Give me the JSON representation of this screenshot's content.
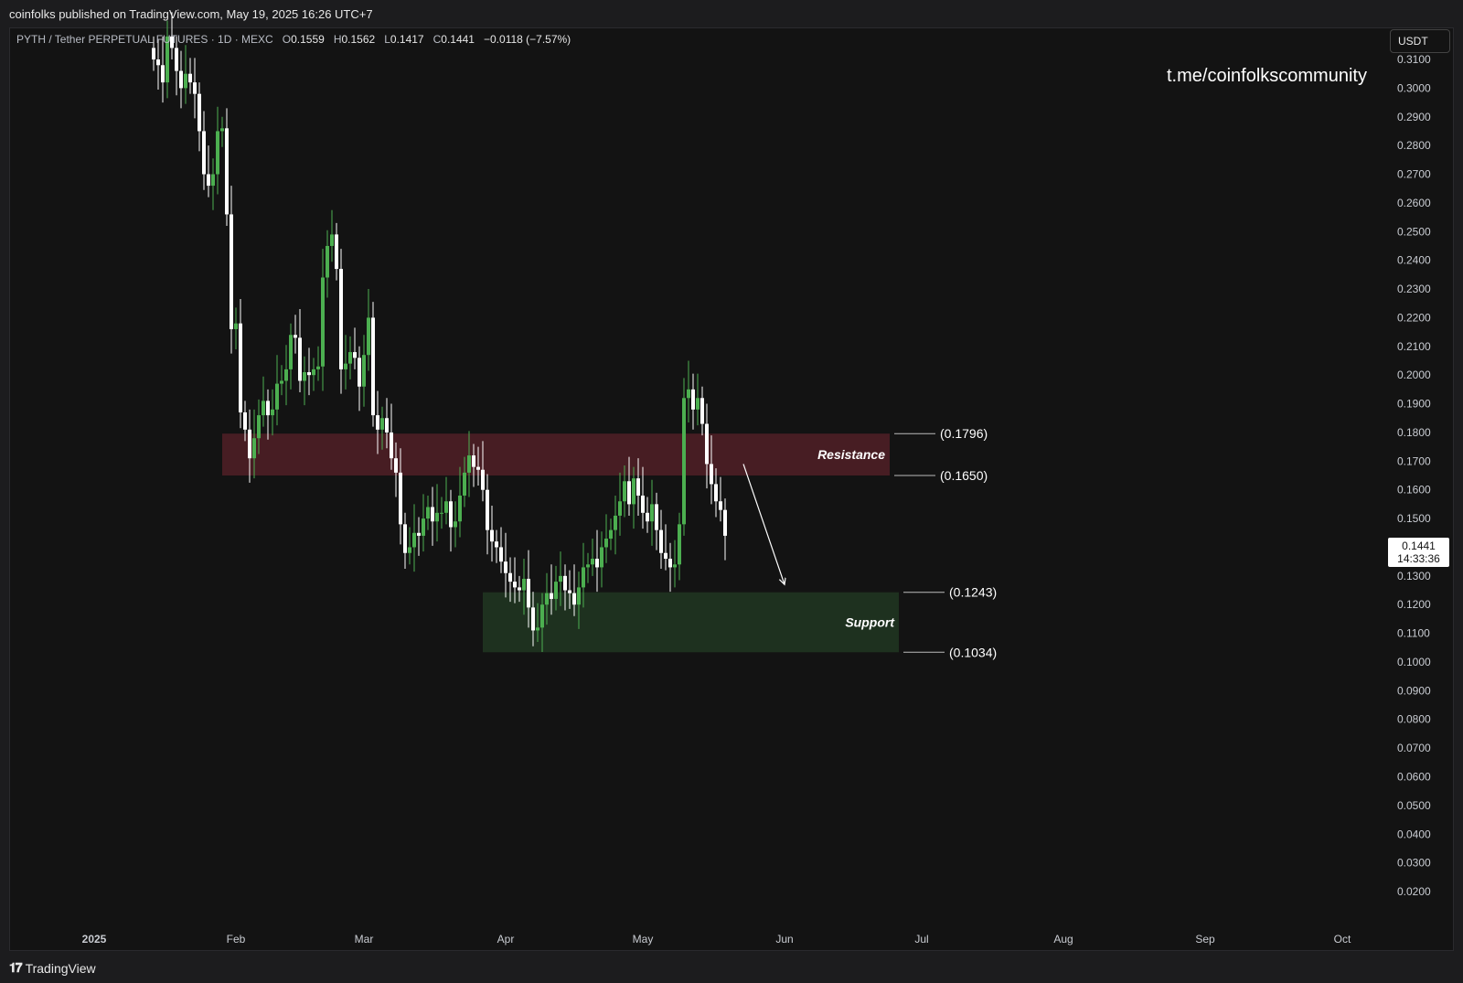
{
  "header": {
    "published": "coinfolks published on TradingView.com, May 19, 2025 16:26 UTC+7"
  },
  "legend": {
    "symbol": "PYTH / Tether PERPETUAL FUTURES · 1D · MEXC",
    "o_label": "O",
    "o": "0.1559",
    "h_label": "H",
    "h": "0.1562",
    "l_label": "L",
    "l": "0.1417",
    "c_label": "C",
    "c": "0.1441",
    "change": "−0.0118 (−7.57%)"
  },
  "watermark_text": "t.me/coinfolkscommunity",
  "currency_button": "USDT",
  "price_tag": {
    "price": "0.1441",
    "countdown": "14:33:36"
  },
  "footer": {
    "logo_mark": "𝟏𝟕",
    "brand": "TradingView"
  },
  "colors": {
    "background": "#131313",
    "up": "#4caf50",
    "down": "#ffffff",
    "resistance_zone": "#4a1e24",
    "support_zone": "#1f3320"
  },
  "chart_data": {
    "type": "candlestick",
    "symbol": "PYTH / Tether PERPETUAL FUTURES",
    "timeframe": "1D",
    "exchange": "MEXC",
    "y_axis_ticks": [
      "0.3100",
      "0.3000",
      "0.2900",
      "0.2800",
      "0.2700",
      "0.2600",
      "0.2500",
      "0.2400",
      "0.2300",
      "0.2200",
      "0.2100",
      "0.2000",
      "0.1900",
      "0.1800",
      "0.1700",
      "0.1600",
      "0.1500",
      "0.1400",
      "0.1300",
      "0.1200",
      "0.1100",
      "0.1000",
      "0.0900",
      "0.0800",
      "0.0700",
      "0.0600",
      "0.0500",
      "0.0400",
      "0.0300",
      "0.0200"
    ],
    "y_tick_values": [
      0.31,
      0.3,
      0.29,
      0.28,
      0.27,
      0.26,
      0.25,
      0.24,
      0.23,
      0.22,
      0.21,
      0.2,
      0.19,
      0.18,
      0.17,
      0.16,
      0.15,
      0.14,
      0.13,
      0.12,
      0.11,
      0.1,
      0.09,
      0.08,
      0.07,
      0.06,
      0.05,
      0.04,
      0.03,
      0.02
    ],
    "x_axis_ticks": [
      {
        "label": "2025",
        "date": "2025-01-01",
        "bold": true
      },
      {
        "label": "Feb",
        "date": "2025-02-01"
      },
      {
        "label": "Mar",
        "date": "2025-03-01"
      },
      {
        "label": "Apr",
        "date": "2025-04-01"
      },
      {
        "label": "May",
        "date": "2025-05-01"
      },
      {
        "label": "Jun",
        "date": "2025-06-01"
      },
      {
        "label": "Jul",
        "date": "2025-07-01"
      },
      {
        "label": "Aug",
        "date": "2025-08-01"
      },
      {
        "label": "Sep",
        "date": "2025-09-01"
      },
      {
        "label": "Oct",
        "date": "2025-10-01"
      }
    ],
    "candles_start": "2025-01-14",
    "closes": [
      0.31,
      0.308,
      0.302,
      0.318,
      0.314,
      0.306,
      0.3,
      0.305,
      0.302,
      0.298,
      0.285,
      0.27,
      0.266,
      0.27,
      0.285,
      0.286,
      0.256,
      0.216,
      0.218,
      0.187,
      0.181,
      0.171,
      0.178,
      0.186,
      0.191,
      0.186,
      0.188,
      0.197,
      0.198,
      0.202,
      0.214,
      0.213,
      0.198,
      0.201,
      0.2,
      0.202,
      0.203,
      0.234,
      0.245,
      0.249,
      0.237,
      0.202,
      0.204,
      0.208,
      0.206,
      0.196,
      0.207,
      0.22,
      0.186,
      0.181,
      0.185,
      0.18,
      0.171,
      0.166,
      0.148,
      0.138,
      0.14,
      0.145,
      0.144,
      0.15,
      0.154,
      0.149,
      0.152,
      0.152,
      0.156,
      0.147,
      0.149,
      0.158,
      0.166,
      0.172,
      0.168,
      0.167,
      0.16,
      0.146,
      0.142,
      0.14,
      0.135,
      0.131,
      0.128,
      0.126,
      0.125,
      0.129,
      0.119,
      0.111,
      0.112,
      0.12,
      0.124,
      0.122,
      0.128,
      0.13,
      0.125,
      0.124,
      0.12,
      0.126,
      0.133,
      0.134,
      0.136,
      0.133,
      0.14,
      0.143,
      0.146,
      0.151,
      0.156,
      0.163,
      0.155,
      0.164,
      0.158,
      0.152,
      0.149,
      0.155,
      0.146,
      0.138,
      0.136,
      0.133,
      0.134,
      0.148,
      0.192,
      0.195,
      0.188,
      0.192,
      0.183,
      0.169,
      0.162,
      0.156,
      0.153,
      0.144
    ],
    "zones": [
      {
        "name": "Resistance",
        "top": 0.1796,
        "bottom": 0.165,
        "start": "2025-01-29",
        "end": "2025-06-24",
        "label_top": "(0.1796)",
        "label_bottom": "(0.1650)"
      },
      {
        "name": "Support",
        "top": 0.1243,
        "bottom": 0.1034,
        "start": "2025-03-27",
        "end": "2025-06-26",
        "label_top": "(0.1243)",
        "label_bottom": "(0.1034)"
      }
    ],
    "arrow": {
      "from": {
        "date": "2025-05-23",
        "value": 0.169
      },
      "to": {
        "date": "2025-06-01",
        "value": 0.127
      }
    },
    "last_price": 0.1441,
    "grid": false
  }
}
